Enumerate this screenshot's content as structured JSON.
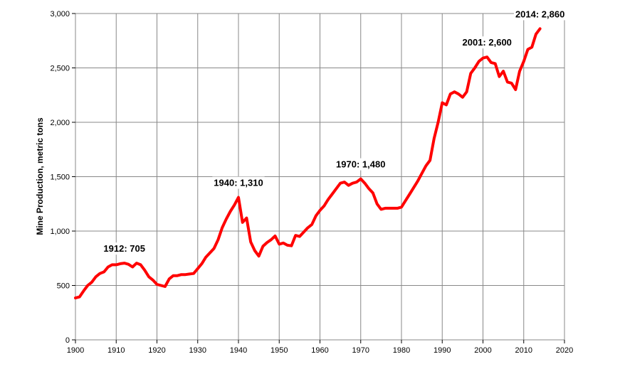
{
  "chart_data": {
    "type": "line",
    "title": "",
    "xlabel": "",
    "ylabel": "Mine Production, metric tons",
    "xlim": [
      1900,
      2020
    ],
    "ylim": [
      0,
      3000
    ],
    "x_ticks": [
      1900,
      1910,
      1920,
      1930,
      1940,
      1950,
      1960,
      1970,
      1980,
      1990,
      2000,
      2010,
      2020
    ],
    "x_tick_labels": [
      "1900",
      "1910",
      "1920",
      "1930",
      "1940",
      "1950",
      "1960",
      "1970",
      "1980",
      "1990",
      "2000",
      "2010",
      "2020"
    ],
    "y_ticks": [
      0,
      500,
      1000,
      1500,
      2000,
      2500,
      3000
    ],
    "y_tick_labels": [
      "0",
      "500",
      "1,000",
      "1,500",
      "2,000",
      "2,500",
      "3,000"
    ],
    "grid": true,
    "line_color": "#ff0000",
    "series": [
      {
        "x": [
          1900,
          1901,
          1902,
          1903,
          1904,
          1905,
          1906,
          1907,
          1908,
          1909,
          1910,
          1911,
          1912,
          1913,
          1914,
          1915,
          1916,
          1917,
          1918,
          1919,
          1920,
          1921,
          1922,
          1923,
          1924,
          1925,
          1926,
          1927,
          1928,
          1929,
          1930,
          1931,
          1932,
          1933,
          1934,
          1935,
          1936,
          1937,
          1938,
          1939,
          1940,
          1941,
          1942,
          1943,
          1944,
          1945,
          1946,
          1947,
          1948,
          1949,
          1950,
          1951,
          1952,
          1953,
          1954,
          1955,
          1956,
          1957,
          1958,
          1959,
          1960,
          1961,
          1962,
          1963,
          1964,
          1965,
          1966,
          1967,
          1968,
          1969,
          1970,
          1971,
          1972,
          1973,
          1974,
          1975,
          1976,
          1977,
          1978,
          1979,
          1980,
          1981,
          1982,
          1983,
          1984,
          1985,
          1986,
          1987,
          1988,
          1989,
          1990,
          1991,
          1992,
          1993,
          1994,
          1995,
          1996,
          1997,
          1998,
          1999,
          2000,
          2001,
          2002,
          2003,
          2004,
          2005,
          2006,
          2007,
          2008,
          2009,
          2010,
          2011,
          2012,
          2013,
          2014
        ],
        "y": [
          385,
          395,
          450,
          500,
          530,
          580,
          610,
          625,
          670,
          690,
          690,
          700,
          705,
          695,
          670,
          705,
          690,
          640,
          580,
          550,
          510,
          500,
          490,
          560,
          590,
          590,
          600,
          600,
          605,
          610,
          655,
          700,
          760,
          800,
          840,
          920,
          1030,
          1110,
          1180,
          1240,
          1310,
          1080,
          1120,
          900,
          820,
          770,
          860,
          895,
          920,
          955,
          880,
          890,
          870,
          865,
          960,
          950,
          990,
          1030,
          1060,
          1140,
          1190,
          1230,
          1290,
          1340,
          1390,
          1440,
          1450,
          1420,
          1440,
          1450,
          1480,
          1440,
          1390,
          1350,
          1250,
          1200,
          1210,
          1210,
          1210,
          1210,
          1220,
          1280,
          1340,
          1400,
          1460,
          1530,
          1600,
          1650,
          1850,
          2000,
          2180,
          2160,
          2260,
          2280,
          2260,
          2230,
          2280,
          2450,
          2500,
          2560,
          2590,
          2600,
          2550,
          2540,
          2420,
          2470,
          2370,
          2360,
          2300,
          2470,
          2560,
          2670,
          2690,
          2810,
          2860
        ]
      }
    ],
    "annotations": [
      {
        "text": "1912:  705",
        "x": 1912,
        "y": 705
      },
      {
        "text": "1940:  1,310",
        "x": 1940,
        "y": 1310
      },
      {
        "text": "1970:  1,480",
        "x": 1970,
        "y": 1480
      },
      {
        "text": "2001:  2,600",
        "x": 2001,
        "y": 2600
      },
      {
        "text": "2014:  2,860",
        "x": 2014,
        "y": 2860
      }
    ]
  }
}
